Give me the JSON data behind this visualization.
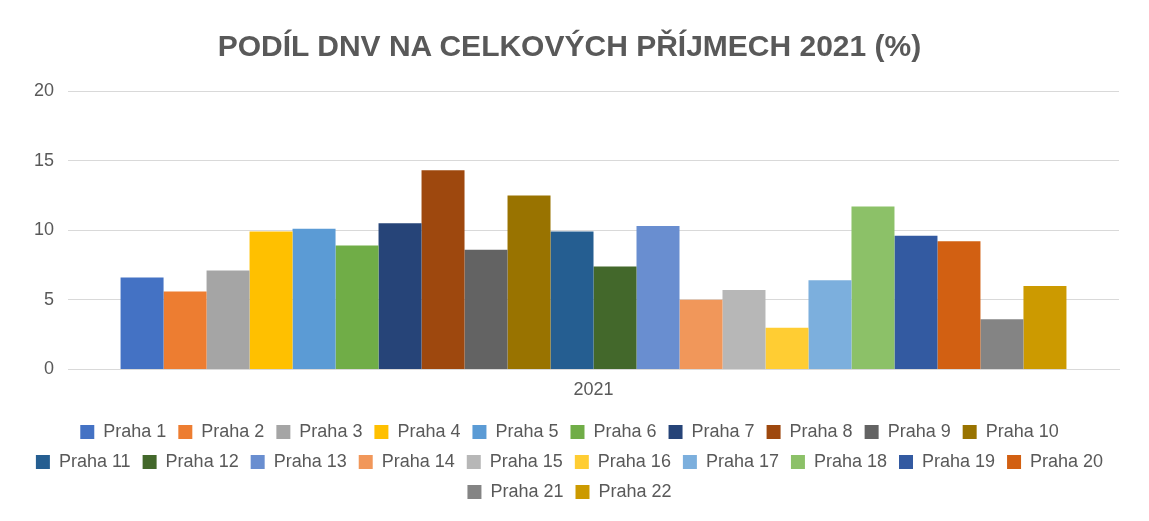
{
  "chart_data": {
    "type": "bar",
    "title": "PODÍL DNV NA CELKOVÝCH PŘÍJMECH 2021 (%)",
    "categories": [
      "2021"
    ],
    "series": [
      {
        "name": "Praha 1",
        "color": "#4472c4",
        "values": [
          6.6
        ]
      },
      {
        "name": "Praha 2",
        "color": "#ed7d31",
        "values": [
          5.6
        ]
      },
      {
        "name": "Praha 3",
        "color": "#a5a5a5",
        "values": [
          7.1
        ]
      },
      {
        "name": "Praha 4",
        "color": "#ffc000",
        "values": [
          9.9
        ]
      },
      {
        "name": "Praha 5",
        "color": "#5b9bd5",
        "values": [
          10.1
        ]
      },
      {
        "name": "Praha 6",
        "color": "#70ad47",
        "values": [
          8.9
        ]
      },
      {
        "name": "Praha 7",
        "color": "#264478",
        "values": [
          10.5
        ]
      },
      {
        "name": "Praha 8",
        "color": "#9e480e",
        "values": [
          14.3
        ]
      },
      {
        "name": "Praha 9",
        "color": "#636363",
        "values": [
          8.6
        ]
      },
      {
        "name": "Praha 10",
        "color": "#997300",
        "values": [
          12.5
        ]
      },
      {
        "name": "Praha 11",
        "color": "#255e91",
        "values": [
          9.9
        ]
      },
      {
        "name": "Praha 12",
        "color": "#43682b",
        "values": [
          7.4
        ]
      },
      {
        "name": "Praha 13",
        "color": "#698ed0",
        "values": [
          10.3
        ]
      },
      {
        "name": "Praha 14",
        "color": "#f1975a",
        "values": [
          5.0
        ]
      },
      {
        "name": "Praha 15",
        "color": "#b7b7b7",
        "values": [
          5.7
        ]
      },
      {
        "name": "Praha 16",
        "color": "#ffcd33",
        "values": [
          3.0
        ]
      },
      {
        "name": "Praha 17",
        "color": "#7cafdd",
        "values": [
          6.4
        ]
      },
      {
        "name": "Praha 18",
        "color": "#8cc168",
        "values": [
          11.7
        ]
      },
      {
        "name": "Praha 19",
        "color": "#335aa1",
        "values": [
          9.6
        ]
      },
      {
        "name": "Praha 20",
        "color": "#d26012",
        "values": [
          9.2
        ]
      },
      {
        "name": "Praha 21",
        "color": "#848484",
        "values": [
          3.6
        ]
      },
      {
        "name": "Praha 22",
        "color": "#cc9a00",
        "values": [
          6.0
        ]
      }
    ],
    "ylim": [
      0,
      20
    ],
    "yticks": [
      0,
      5,
      10,
      15,
      20
    ],
    "grid": "y",
    "legend": "bottom"
  }
}
